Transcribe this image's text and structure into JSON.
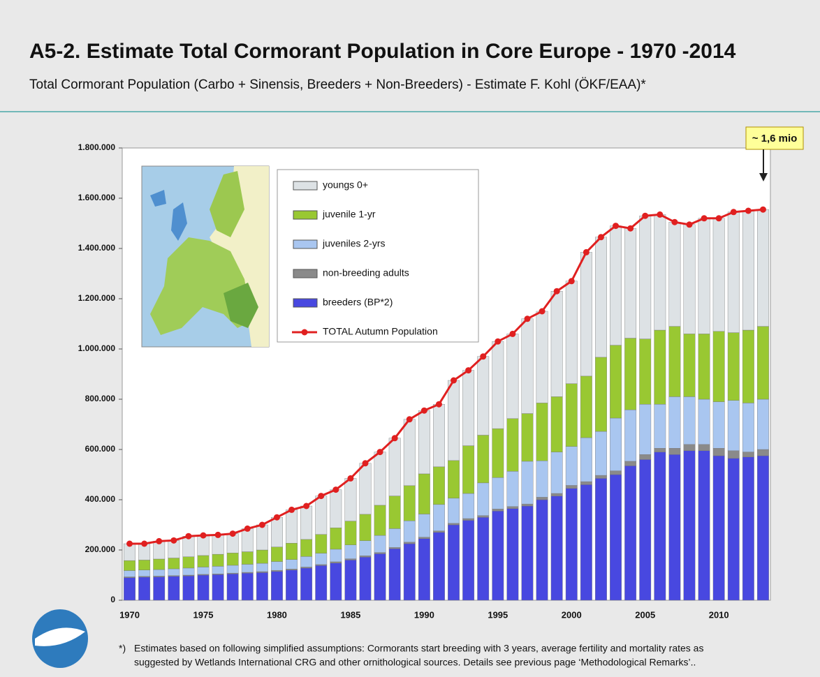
{
  "chart_data": {
    "type": "bar",
    "stacked": true,
    "title": "A5-2. Estimate Total Cormorant Population in Core Europe - 1970 -2014",
    "subtitle": "Total Cormorant Population (Carbo + Sinensis, Breeders + Non-Breeders) - Estimate F. Kohl (ÖKF/EAA)*",
    "annotation": "~ 1,6 mio",
    "footnote": {
      "marker": "*)",
      "lines": [
        "Estimates based on following simplified assumptions: Cormorants start breeding with 3 years, average fertility and mortality rates as",
        "suggested by Wetlands International CRG and other ornithological sources. Details see previous page ‘Methodological Remarks’.."
      ]
    },
    "categories": [
      "1970",
      null,
      null,
      null,
      null,
      "1975",
      null,
      null,
      null,
      null,
      "1980",
      null,
      null,
      null,
      null,
      "1985",
      null,
      null,
      null,
      null,
      "1990",
      null,
      null,
      null,
      null,
      "1995",
      null,
      null,
      null,
      null,
      "2000",
      null,
      null,
      null,
      null,
      "2005",
      null,
      null,
      null,
      null,
      "2010",
      null,
      null,
      null
    ],
    "ylim": [
      0,
      1800000
    ],
    "yticks": [
      0,
      {
        "value": 200000,
        "label": "200.000"
      },
      {
        "value": 400000,
        "label": "400.000"
      },
      {
        "value": 600000,
        "label": "600.000"
      },
      {
        "value": 800000,
        "label": "800.000"
      },
      {
        "value": 1000000,
        "label": "1.000.000"
      },
      {
        "value": 1200000,
        "label": "1.200.000"
      },
      {
        "value": 1400000,
        "label": "1.400.000"
      },
      {
        "value": 1600000,
        "label": "1.600.000"
      },
      {
        "value": 1800000,
        "label": "1.800.000"
      }
    ],
    "series": [
      {
        "name": "youngs 0+",
        "color": "#dde2e5",
        "values": [
          67000,
          65000,
          71000,
          70000,
          82000,
          80000,
          77000,
          77000,
          92000,
          100000,
          118000,
          133000,
          133000,
          153000,
          152000,
          170000,
          203000,
          212000,
          230000,
          264000,
          252000,
          249000,
          319000,
          300000,
          313000,
          347000,
          337000,
          377000,
          365000,
          420000,
          408000,
          493000,
          478000,
          475000,
          437000,
          490000,
          460000,
          415000,
          435000,
          460000,
          450000,
          480000,
          475000,
          465000
        ]
      },
      {
        "name": "juvenile 1-yr",
        "color": "#99c832",
        "values": [
          40000,
          40000,
          42000,
          43000,
          45000,
          46000,
          48000,
          49000,
          50000,
          53000,
          58000,
          65000,
          68000,
          75000,
          85000,
          95000,
          105000,
          120000,
          130000,
          140000,
          160000,
          150000,
          150000,
          190000,
          190000,
          195000,
          210000,
          190000,
          230000,
          220000,
          250000,
          245000,
          295000,
          290000,
          285000,
          260000,
          295000,
          280000,
          250000,
          260000,
          280000,
          270000,
          290000,
          290000
        ]
      },
      {
        "name": "juveniles 2-yrs",
        "color": "#a9c6f0",
        "values": [
          25000,
          25000,
          26000,
          27000,
          28000,
          29000,
          30000,
          31000,
          32000,
          33000,
          35000,
          38000,
          42000,
          45000,
          50000,
          55000,
          60000,
          68000,
          75000,
          85000,
          92000,
          105000,
          100000,
          100000,
          130000,
          125000,
          140000,
          170000,
          145000,
          165000,
          155000,
          175000,
          175000,
          210000,
          205000,
          200000,
          175000,
          205000,
          190000,
          180000,
          185000,
          200000,
          195000,
          200000
        ]
      },
      {
        "name": "non-breeding adults",
        "color": "#8a8a8a",
        "values": [
          3000,
          3000,
          3000,
          3000,
          3000,
          3000,
          3000,
          3000,
          3000,
          4000,
          4000,
          4000,
          4000,
          4000,
          5000,
          5000,
          5000,
          5000,
          5000,
          6000,
          6000,
          6000,
          6000,
          7000,
          7000,
          8000,
          8000,
          8000,
          10000,
          10000,
          12000,
          12000,
          12000,
          15000,
          18000,
          20000,
          15000,
          25000,
          25000,
          25000,
          30000,
          30000,
          20000,
          25000
        ]
      },
      {
        "name": "breeders (BP*2)",
        "color": "#4848e0",
        "values": [
          90000,
          92000,
          93000,
          95000,
          97000,
          100000,
          102000,
          105000,
          108000,
          110000,
          115000,
          120000,
          128000,
          138000,
          148000,
          160000,
          172000,
          185000,
          205000,
          225000,
          245000,
          270000,
          300000,
          318000,
          330000,
          355000,
          365000,
          375000,
          400000,
          415000,
          445000,
          460000,
          485000,
          500000,
          535000,
          560000,
          590000,
          580000,
          595000,
          595000,
          575000,
          565000,
          570000,
          575000
        ]
      },
      {
        "name": "TOTAL Autumn Population",
        "type": "line",
        "color": "#e02020",
        "values": [
          225000,
          225000,
          235000,
          238000,
          255000,
          258000,
          260000,
          265000,
          285000,
          300000,
          330000,
          360000,
          375000,
          415000,
          440000,
          485000,
          545000,
          590000,
          645000,
          720000,
          755000,
          780000,
          875000,
          915000,
          970000,
          1030000,
          1060000,
          1120000,
          1150000,
          1230000,
          1270000,
          1385000,
          1445000,
          1490000,
          1480000,
          1530000,
          1535000,
          1505000,
          1495000,
          1520000,
          1520000,
          1545000,
          1550000,
          1555000
        ]
      }
    ]
  }
}
